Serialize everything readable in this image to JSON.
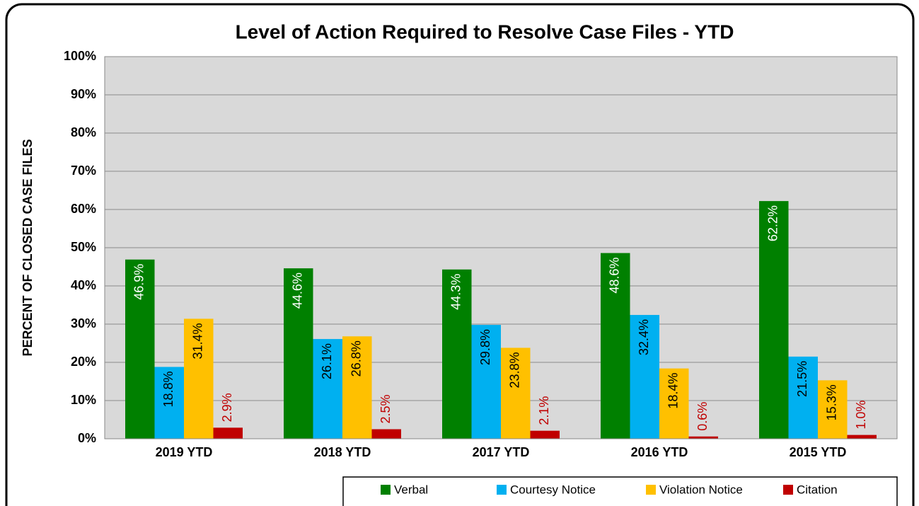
{
  "chart_data": {
    "type": "bar",
    "title": "Level of Action Required to Resolve Case Files - YTD",
    "y_label": "PERCENT OF CLOSED CASE FILES",
    "categories": [
      "2019 YTD",
      "2018 YTD",
      "2017 YTD",
      "2016 YTD",
      "2015 YTD"
    ],
    "series": [
      {
        "name": "Verbal",
        "color": "#008000",
        "label_color": "#ffffff",
        "label_position": "inside",
        "values": [
          46.9,
          44.6,
          44.3,
          48.6,
          62.2
        ],
        "value_labels": [
          "46.9%",
          "44.6%",
          "44.3%",
          "48.6%",
          "62.2%"
        ]
      },
      {
        "name": "Courtesy Notice",
        "color": "#00b0f0",
        "label_color": "#000000",
        "label_position": "inside",
        "values": [
          18.8,
          26.1,
          29.8,
          32.4,
          21.5
        ],
        "value_labels": [
          "18.8%",
          "26.1%",
          "29.8%",
          "32.4%",
          "21.5%"
        ]
      },
      {
        "name": "Violation Notice",
        "color": "#ffc000",
        "label_color": "#000000",
        "label_position": "inside",
        "values": [
          31.4,
          26.8,
          23.8,
          18.4,
          15.3
        ],
        "value_labels": [
          "31.4%",
          "26.8%",
          "23.8%",
          "18.4%",
          "15.3%"
        ]
      },
      {
        "name": "Citation",
        "color": "#c00000",
        "label_color": "#c00000",
        "label_position": "outside",
        "values": [
          2.9,
          2.5,
          2.1,
          0.6,
          1.0
        ],
        "value_labels": [
          "2.9%",
          "2.5%",
          "2.1%",
          "0.6%",
          "1.0%"
        ]
      }
    ],
    "ylim": [
      0,
      100
    ],
    "yticks": [
      {
        "value": 0,
        "label": "0%"
      },
      {
        "value": 10,
        "label": "10%"
      },
      {
        "value": 20,
        "label": "20%"
      },
      {
        "value": 30,
        "label": "30%"
      },
      {
        "value": 40,
        "label": "40%"
      },
      {
        "value": 50,
        "label": "50%"
      },
      {
        "value": 60,
        "label": "60%"
      },
      {
        "value": 70,
        "label": "70%"
      },
      {
        "value": 80,
        "label": "80%"
      },
      {
        "value": 90,
        "label": "90%"
      },
      {
        "value": 100,
        "label": "100%"
      }
    ],
    "grid": true,
    "legend": "bottom"
  }
}
